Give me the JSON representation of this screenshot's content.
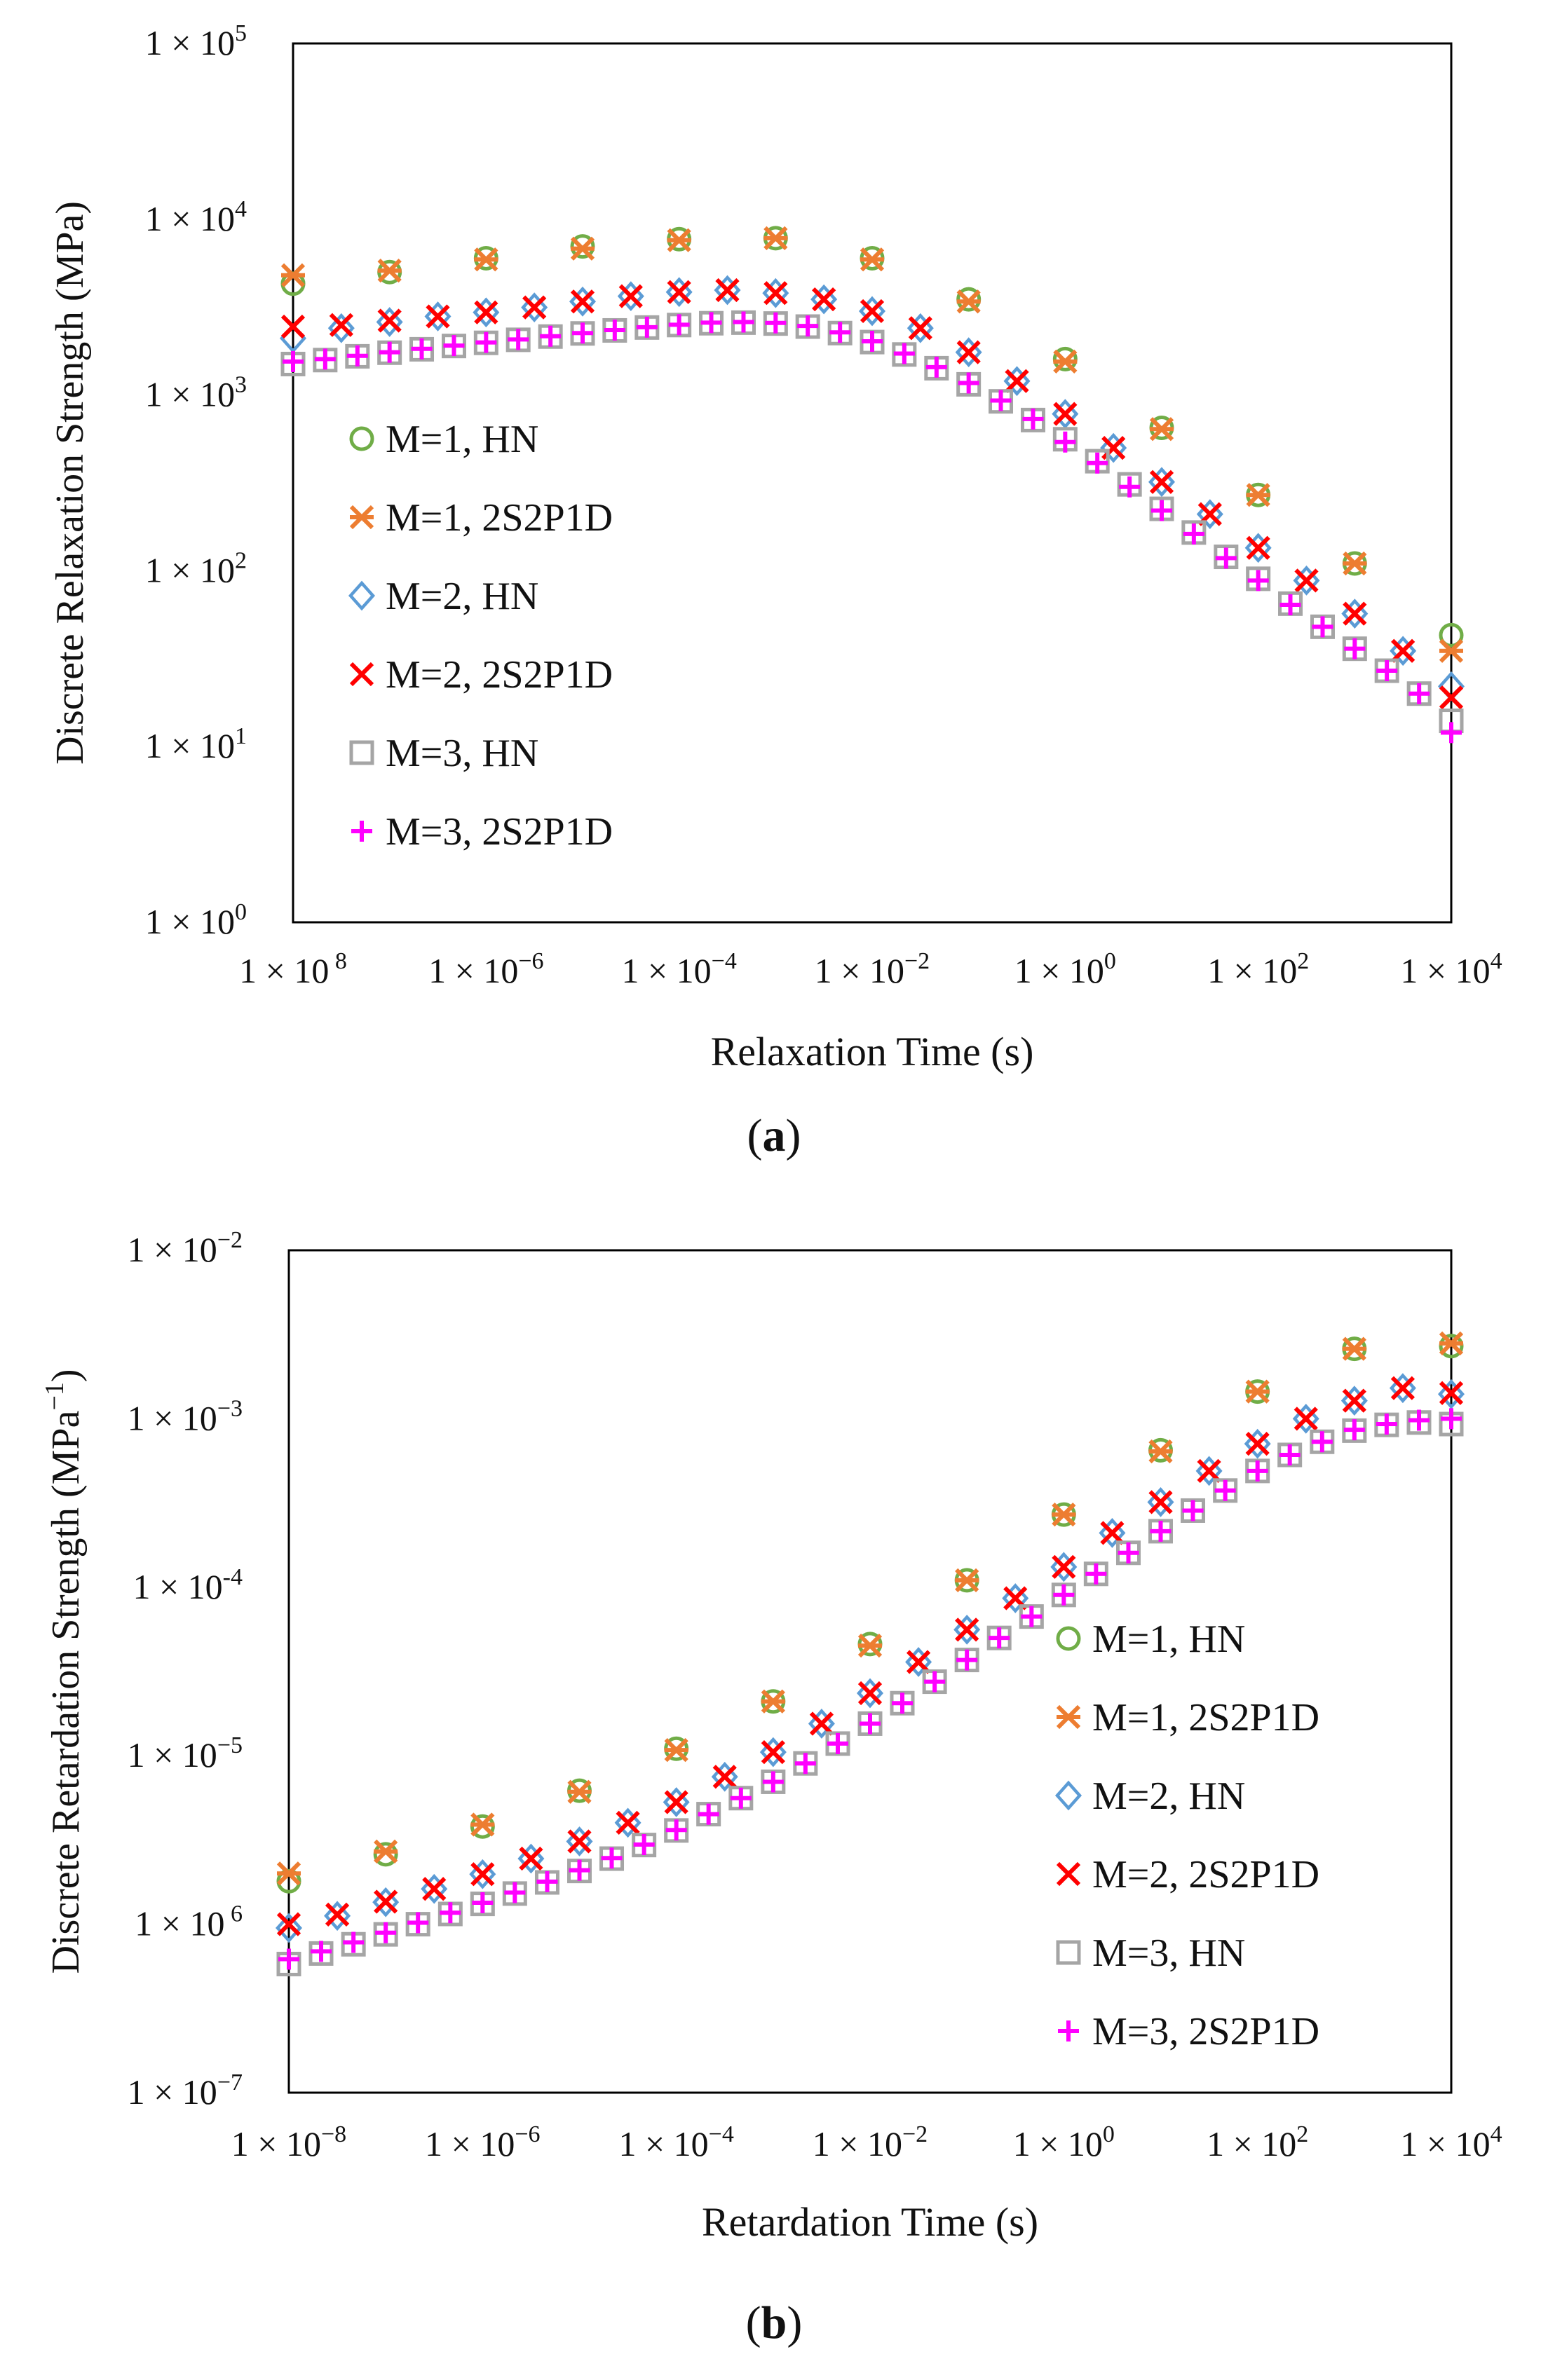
{
  "colors": {
    "M1_HN": "#70ad47",
    "M1_2S2P1D": "#ed7d31",
    "M2_HN": "#5b9bd5",
    "M2_2S2P1D": "#ff0000",
    "M3_HN": "#a5a5a5",
    "M3_2S2P1D": "#ff00ff",
    "axis": "#000000"
  },
  "chart_data": [
    {
      "id": "a",
      "type": "scatter",
      "caption_letter": "a",
      "title": "",
      "xlabel": "Relaxation Time (s)",
      "ylabel": "Discrete Relaxation Strength (MPa)",
      "xscale": "log",
      "yscale": "log",
      "xlim_exp": [
        -8,
        4
      ],
      "ylim_exp": [
        0,
        5
      ],
      "x_tick_exps": [
        -8,
        -6,
        -4,
        -2,
        0,
        2,
        4
      ],
      "x_tick_labels": [
        "1 × 10 8",
        "1 × 10−6",
        "1 × 10−4",
        "1 × 10−2",
        "1 × 100",
        "1 × 102",
        "1 × 104"
      ],
      "y_tick_exps": [
        0,
        1,
        2,
        3,
        4,
        5
      ],
      "y_tick_labels": [
        "1 × 100",
        "1 × 101",
        "1 × 102",
        "1 × 103",
        "1 × 104",
        "1 × 105"
      ],
      "legend_position": "left-middle",
      "series": [
        {
          "name": "M=1, HN",
          "marker": "circle",
          "color_key": "M1_HN",
          "x_exp": [
            -8,
            -7,
            -6,
            -5,
            -4,
            -3,
            -2,
            -1,
            0,
            1,
            2,
            3,
            4
          ],
          "y": [
            4300,
            5000,
            6000,
            7000,
            7700,
            7800,
            6000,
            3500,
            1600,
            650,
            270,
            110,
            43
          ]
        },
        {
          "name": "M=1, 2S2P1D",
          "marker": "asterisk",
          "color_key": "M1_2S2P1D",
          "x_exp": [
            -8,
            -7,
            -6,
            -5,
            -4,
            -3,
            -2,
            -1,
            0,
            1,
            2,
            3,
            4
          ],
          "y": [
            4800,
            5100,
            5900,
            6800,
            7600,
            7800,
            5900,
            3400,
            1550,
            640,
            270,
            110,
            35
          ]
        },
        {
          "name": "M=2, HN",
          "marker": "diamond",
          "color_key": "M2_HN",
          "x_exp": [
            -8,
            -7.5,
            -7,
            -6.5,
            -6,
            -5.5,
            -5,
            -4.5,
            -4,
            -3.5,
            -3,
            -2.5,
            -2,
            -1.5,
            -1,
            -0.5,
            0,
            0.5,
            1,
            1.5,
            2,
            2.5,
            3,
            3.5,
            4
          ],
          "y": [
            2100,
            2400,
            2600,
            2800,
            2950,
            3150,
            3400,
            3650,
            3850,
            3950,
            3800,
            3500,
            3000,
            2400,
            1750,
            1200,
            780,
            500,
            320,
            210,
            135,
            88,
            57,
            35,
            22
          ]
        },
        {
          "name": "M=2, 2S2P1D",
          "marker": "x",
          "color_key": "M2_2S2P1D",
          "x_exp": [
            -8,
            -7.5,
            -7,
            -6.5,
            -6,
            -5.5,
            -5,
            -4.5,
            -4,
            -3.5,
            -3,
            -2.5,
            -2,
            -1.5,
            -1,
            -0.5,
            0,
            0.5,
            1,
            1.5,
            2,
            2.5,
            3,
            3.5,
            4
          ],
          "y": [
            2450,
            2500,
            2650,
            2800,
            2950,
            3150,
            3400,
            3650,
            3850,
            3950,
            3800,
            3500,
            3000,
            2400,
            1750,
            1200,
            780,
            500,
            320,
            210,
            135,
            88,
            57,
            35,
            19
          ]
        },
        {
          "name": "M=3, HN",
          "marker": "square",
          "color_key": "M3_HN",
          "x_exp": [
            -8,
            -7.667,
            -7.333,
            -7,
            -6.667,
            -6.333,
            -6,
            -5.667,
            -5.333,
            -5,
            -4.667,
            -4.333,
            -4,
            -3.667,
            -3.333,
            -3,
            -2.667,
            -2.333,
            -2,
            -1.667,
            -1.333,
            -1,
            -0.667,
            -0.333,
            0,
            0.333,
            0.667,
            1,
            1.333,
            1.667,
            2,
            2.333,
            2.667,
            3,
            3.333,
            3.667,
            4
          ],
          "y": [
            1500,
            1580,
            1660,
            1740,
            1820,
            1900,
            1980,
            2060,
            2150,
            2240,
            2330,
            2420,
            2500,
            2560,
            2580,
            2550,
            2450,
            2250,
            2000,
            1700,
            1420,
            1150,
            920,
            720,
            560,
            420,
            310,
            225,
            165,
            120,
            90,
            65,
            48,
            36,
            27,
            20,
            14
          ]
        },
        {
          "name": "M=3, 2S2P1D",
          "marker": "plus",
          "color_key": "M3_2S2P1D",
          "x_exp": [
            -8,
            -7.667,
            -7.333,
            -7,
            -6.667,
            -6.333,
            -6,
            -5.667,
            -5.333,
            -5,
            -4.667,
            -4.333,
            -4,
            -3.667,
            -3.333,
            -3,
            -2.667,
            -2.333,
            -2,
            -1.667,
            -1.333,
            -1,
            -0.667,
            -0.333,
            0,
            0.333,
            0.667,
            1,
            1.333,
            1.667,
            2,
            2.333,
            2.667,
            3,
            3.333,
            3.667,
            4
          ],
          "y": [
            1550,
            1600,
            1670,
            1750,
            1830,
            1910,
            1990,
            2070,
            2160,
            2250,
            2340,
            2430,
            2510,
            2580,
            2600,
            2570,
            2470,
            2270,
            2020,
            1720,
            1440,
            1170,
            930,
            730,
            540,
            410,
            300,
            220,
            162,
            118,
            88,
            64,
            48,
            36,
            27,
            20,
            12
          ]
        }
      ]
    },
    {
      "id": "b",
      "type": "scatter",
      "caption_letter": "b",
      "title": "",
      "xlabel": "Retardation Time (s)",
      "ylabel": "Discrete Retardation Strength (MPa−1)",
      "ylabel_main": "Discrete Retardation Strength (MPa",
      "ylabel_sup": "−1",
      "ylabel_close": ")",
      "xscale": "log",
      "yscale": "log",
      "xlim_exp": [
        -8,
        4
      ],
      "ylim_exp": [
        -7,
        -2
      ],
      "x_tick_exps": [
        -8,
        -6,
        -4,
        -2,
        0,
        2,
        4
      ],
      "x_tick_labels": [
        "1 × 10−8",
        "1 × 10−6",
        "1 × 10−4",
        "1 × 10−2",
        "1 × 100",
        "1 × 102",
        "1 × 104"
      ],
      "y_tick_exps": [
        -7,
        -6,
        -5,
        -4,
        -3,
        -2
      ],
      "y_tick_labels": [
        "1 × 10−7",
        "1 × 10 6",
        "1 × 10−5",
        "1 × 10-4",
        "1 × 10−3",
        "1 × 10−2"
      ],
      "legend_position": "lower-right",
      "series": [
        {
          "name": "M=1, HN",
          "marker": "circle",
          "color_key": "M1_HN",
          "x_exp": [
            -8,
            -7,
            -6,
            -5,
            -4,
            -3,
            -2,
            -1,
            0,
            1,
            2,
            3,
            4
          ],
          "y": [
            1.8e-06,
            2.6e-06,
            3.8e-06,
            6.2e-06,
            1.1e-05,
            2.1e-05,
            4.6e-05,
            0.00011,
            0.00027,
            0.00065,
            0.00145,
            0.0026,
            0.0027
          ]
        },
        {
          "name": "M=1, 2S2P1D",
          "marker": "asterisk",
          "color_key": "M1_2S2P1D",
          "x_exp": [
            -8,
            -7,
            -6,
            -5,
            -4,
            -3,
            -2,
            -1,
            0,
            1,
            2,
            3,
            4
          ],
          "y": [
            2e-06,
            2.7e-06,
            3.9e-06,
            6.1e-06,
            1.08e-05,
            2.1e-05,
            4.5e-05,
            0.00011,
            0.00027,
            0.00064,
            0.00145,
            0.0026,
            0.0028
          ]
        },
        {
          "name": "M=2, HN",
          "marker": "diamond",
          "color_key": "M2_HN",
          "x_exp": [
            -8,
            -7.5,
            -7,
            -6.5,
            -6,
            -5.5,
            -5,
            -4.5,
            -4,
            -3.5,
            -3,
            -2.5,
            -2,
            -1.5,
            -1,
            -0.5,
            0,
            0.5,
            1,
            1.5,
            2,
            2.5,
            3,
            3.5,
            4
          ],
          "y": [
            9.5e-07,
            1.12e-06,
            1.35e-06,
            1.62e-06,
            1.98e-06,
            2.45e-06,
            3.1e-06,
            4e-06,
            5.3e-06,
            7.5e-06,
            1.05e-05,
            1.55e-05,
            2.35e-05,
            3.6e-05,
            5.6e-05,
            8.6e-05,
            0.000132,
            0.00021,
            0.00032,
            0.00049,
            0.00071,
            0.001,
            0.00128,
            0.00152,
            0.0014
          ]
        },
        {
          "name": "M=2, 2S2P1D",
          "marker": "x",
          "color_key": "M2_2S2P1D",
          "x_exp": [
            -8,
            -7.5,
            -7,
            -6.5,
            -6,
            -5.5,
            -5,
            -4.5,
            -4,
            -3.5,
            -3,
            -2.5,
            -2,
            -1.5,
            -1,
            -0.5,
            0,
            0.5,
            1,
            1.5,
            2,
            2.5,
            3,
            3.5,
            4
          ],
          "y": [
            1e-06,
            1.14e-06,
            1.36e-06,
            1.62e-06,
            1.98e-06,
            2.45e-06,
            3.1e-06,
            4e-06,
            5.3e-06,
            7.5e-06,
            1.05e-05,
            1.55e-05,
            2.35e-05,
            3.6e-05,
            5.6e-05,
            8.6e-05,
            0.000132,
            0.00021,
            0.00032,
            0.00049,
            0.00071,
            0.001,
            0.00128,
            0.00152,
            0.00142
          ]
        },
        {
          "name": "M=3, HN",
          "marker": "square",
          "color_key": "M3_HN",
          "x_exp": [
            -8,
            -7.667,
            -7.333,
            -7,
            -6.667,
            -6.333,
            -6,
            -5.667,
            -5.333,
            -5,
            -4.667,
            -4.333,
            -4,
            -3.667,
            -3.333,
            -3,
            -2.667,
            -2.333,
            -2,
            -1.667,
            -1.333,
            -1,
            -0.667,
            -0.333,
            0,
            0.333,
            0.667,
            1,
            1.333,
            1.667,
            2,
            2.333,
            2.667,
            3,
            3.333,
            3.667,
            4
          ],
          "y": [
            5.8e-07,
            6.7e-07,
            7.6e-07,
            8.7e-07,
            1e-06,
            1.15e-06,
            1.32e-06,
            1.52e-06,
            1.77e-06,
            2.07e-06,
            2.45e-06,
            2.95e-06,
            3.6e-06,
            4.5e-06,
            5.6e-06,
            7e-06,
            9e-06,
            1.18e-05,
            1.55e-05,
            2.05e-05,
            2.75e-05,
            3.7e-05,
            5e-05,
            6.7e-05,
            9e-05,
            0.00012,
            0.00016,
            0.000215,
            0.000285,
            0.000375,
            0.00049,
            0.00061,
            0.00073,
            0.00085,
            0.00092,
            0.00095,
            0.00093
          ]
        },
        {
          "name": "M=3, 2S2P1D",
          "marker": "plus",
          "color_key": "M3_2S2P1D",
          "x_exp": [
            -8,
            -7.667,
            -7.333,
            -7,
            -6.667,
            -6.333,
            -6,
            -5.667,
            -5.333,
            -5,
            -4.667,
            -4.333,
            -4,
            -3.667,
            -3.333,
            -3,
            -2.667,
            -2.333,
            -2,
            -1.667,
            -1.333,
            -1,
            -0.667,
            -0.333,
            0,
            0.333,
            0.667,
            1,
            1.333,
            1.667,
            2,
            2.333,
            2.667,
            3,
            3.333,
            3.667,
            4
          ],
          "y": [
            6.2e-07,
            6.9e-07,
            7.8e-07,
            8.9e-07,
            1.02e-06,
            1.17e-06,
            1.34e-06,
            1.54e-06,
            1.79e-06,
            2.09e-06,
            2.47e-06,
            2.97e-06,
            3.62e-06,
            4.5e-06,
            5.6e-06,
            7e-06,
            9e-06,
            1.18e-05,
            1.55e-05,
            2.05e-05,
            2.75e-05,
            3.7e-05,
            5e-05,
            6.7e-05,
            9e-05,
            0.00012,
            0.00016,
            0.000215,
            0.000285,
            0.000375,
            0.00049,
            0.00061,
            0.00073,
            0.00086,
            0.00093,
            0.00098,
            0.001
          ]
        }
      ]
    }
  ]
}
